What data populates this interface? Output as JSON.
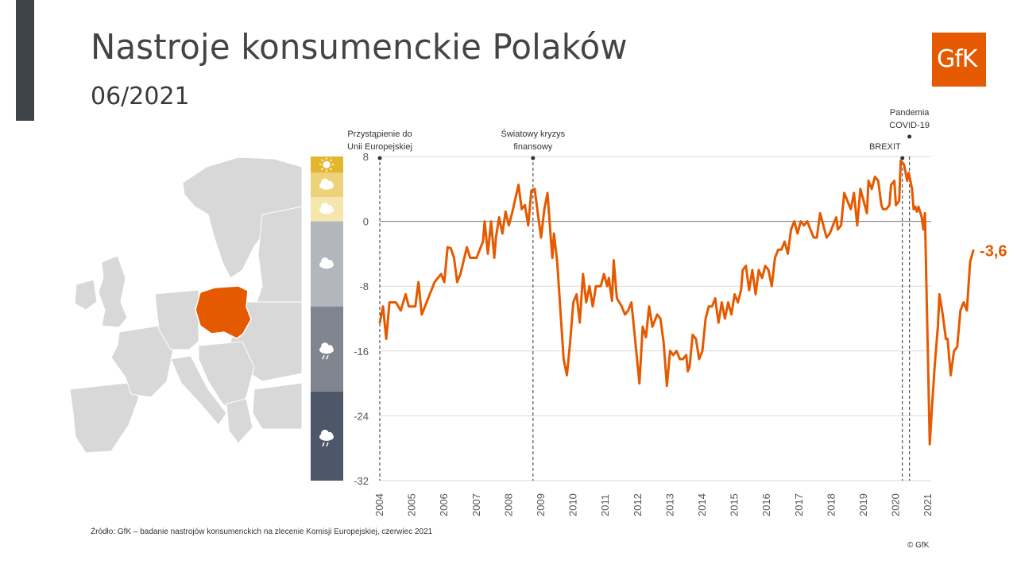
{
  "title": "Nastroje konsumenckie Polaków",
  "subtitle": "06/2021",
  "logo": {
    "text": "GfK",
    "color": "#e55a00"
  },
  "source": "Źródło: GfK – badanie nastrojów konsumenckich na zlecenie Komisji Europejskiej, czerwiec 2021",
  "copyright": "© GfK",
  "colors": {
    "line": "#e55a00",
    "poland": "#e55a00",
    "map": "#d8d8d8",
    "grid": "#d9d9d9",
    "zero": "#8c8c8c"
  },
  "weather_scale": [
    {
      "icon": "sun-icon",
      "color": "#e3b72d",
      "from": 8,
      "to": 6
    },
    {
      "icon": "sun-cloud-icon",
      "color": "#edd279",
      "from": 6,
      "to": 3
    },
    {
      "icon": "cloud-light-icon",
      "color": "#f5e6ad",
      "from": 3,
      "to": 0
    },
    {
      "icon": "cloud-icon",
      "color": "#b3b6bd",
      "from": 0,
      "to": -10.5
    },
    {
      "icon": "rain-cloud-icon",
      "color": "#80858f",
      "from": -10.5,
      "to": -21
    },
    {
      "icon": "storm-cloud-icon",
      "color": "#4d576a",
      "from": -21,
      "to": -32
    }
  ],
  "chart_data": {
    "type": "line",
    "title": "",
    "xlabel": "",
    "ylabel": "",
    "ylim": [
      -32,
      8
    ],
    "yticks": [
      8,
      0,
      -8,
      -16,
      -24,
      -32
    ],
    "xtick_labels": [
      "2004",
      "2005",
      "2006",
      "2007",
      "2008",
      "2009",
      "2010",
      "2011",
      "2012",
      "2013",
      "2014",
      "2015",
      "2016",
      "2017",
      "2018",
      "2019",
      "2020",
      "2021"
    ],
    "grid": true,
    "last_value_label": "-3,6",
    "annotations": [
      {
        "label_lines": [
          "Przystąpienie do",
          "Unii Europejskiej"
        ],
        "x": 2004.0
      },
      {
        "label_lines": [
          "Światowy kryzys",
          "finansowy"
        ],
        "x": 2008.75
      },
      {
        "label_lines": [
          "BREXIT"
        ],
        "x": 2020.2
      },
      {
        "label_lines": [
          "Pandemia",
          "COVID-19"
        ],
        "x": 2020.42
      }
    ],
    "series": [
      {
        "points": [
          [
            2004.0,
            -12.5
          ],
          [
            2004.1,
            -10.5
          ],
          [
            2004.2,
            -14.5
          ],
          [
            2004.3,
            -10
          ],
          [
            2004.5,
            -10
          ],
          [
            2004.65,
            -11
          ],
          [
            2004.8,
            -9
          ],
          [
            2004.9,
            -10.5
          ],
          [
            2005.1,
            -10.5
          ],
          [
            2005.2,
            -7.5
          ],
          [
            2005.3,
            -11.5
          ],
          [
            2005.5,
            -9.5
          ],
          [
            2005.7,
            -7.5
          ],
          [
            2005.9,
            -6.5
          ],
          [
            2006.0,
            -7.5
          ],
          [
            2006.1,
            -3.2
          ],
          [
            2006.2,
            -3.3
          ],
          [
            2006.3,
            -4.5
          ],
          [
            2006.4,
            -7.5
          ],
          [
            2006.5,
            -6.5
          ],
          [
            2006.7,
            -3.2
          ],
          [
            2006.8,
            -4.5
          ],
          [
            2007.0,
            -4.5
          ],
          [
            2007.2,
            -2.5
          ],
          [
            2007.25,
            0
          ],
          [
            2007.35,
            -4
          ],
          [
            2007.45,
            0
          ],
          [
            2007.55,
            -4.5
          ],
          [
            2007.6,
            -2
          ],
          [
            2007.7,
            0.5
          ],
          [
            2007.8,
            -1.5
          ],
          [
            2007.9,
            1.2
          ],
          [
            2008.0,
            -0.5
          ],
          [
            2008.1,
            1
          ],
          [
            2008.3,
            4.5
          ],
          [
            2008.4,
            1.5
          ],
          [
            2008.5,
            2
          ],
          [
            2008.6,
            -0.5
          ],
          [
            2008.7,
            3.8
          ],
          [
            2008.8,
            4
          ],
          [
            2008.9,
            1
          ],
          [
            2009.0,
            -2
          ],
          [
            2009.1,
            1.5
          ],
          [
            2009.2,
            3.5
          ],
          [
            2009.3,
            -2
          ],
          [
            2009.35,
            -4.5
          ],
          [
            2009.4,
            -1.5
          ],
          [
            2009.5,
            -5
          ],
          [
            2009.7,
            -17
          ],
          [
            2009.8,
            -19
          ],
          [
            2009.9,
            -15
          ],
          [
            2010.0,
            -10
          ],
          [
            2010.1,
            -9
          ],
          [
            2010.2,
            -12.5
          ],
          [
            2010.3,
            -6.5
          ],
          [
            2010.4,
            -10
          ],
          [
            2010.5,
            -8
          ],
          [
            2010.6,
            -10.5
          ],
          [
            2010.7,
            -8
          ],
          [
            2010.85,
            -8
          ],
          [
            2010.95,
            -6.5
          ],
          [
            2011.05,
            -8
          ],
          [
            2011.1,
            -7
          ],
          [
            2011.2,
            -9.8
          ],
          [
            2011.25,
            -4.8
          ],
          [
            2011.35,
            -9.5
          ],
          [
            2011.5,
            -10.5
          ],
          [
            2011.6,
            -11.5
          ],
          [
            2011.7,
            -11
          ],
          [
            2011.8,
            -10
          ],
          [
            2011.95,
            -16
          ],
          [
            2012.05,
            -20
          ],
          [
            2012.15,
            -13
          ],
          [
            2012.25,
            -14.3
          ],
          [
            2012.35,
            -10.5
          ],
          [
            2012.45,
            -13
          ],
          [
            2012.6,
            -11.5
          ],
          [
            2012.7,
            -12
          ],
          [
            2012.8,
            -15
          ],
          [
            2012.9,
            -20.3
          ],
          [
            2013.0,
            -16
          ],
          [
            2013.1,
            -16.5
          ],
          [
            2013.2,
            -16
          ],
          [
            2013.3,
            -17
          ],
          [
            2013.4,
            -17
          ],
          [
            2013.5,
            -16.5
          ],
          [
            2013.55,
            -18.5
          ],
          [
            2013.6,
            -18
          ],
          [
            2013.7,
            -14
          ],
          [
            2013.8,
            -14.5
          ],
          [
            2013.9,
            -17
          ],
          [
            2014.0,
            -16
          ],
          [
            2014.1,
            -12
          ],
          [
            2014.2,
            -10.5
          ],
          [
            2014.3,
            -10.5
          ],
          [
            2014.4,
            -9.5
          ],
          [
            2014.5,
            -12.5
          ],
          [
            2014.6,
            -10
          ],
          [
            2014.7,
            -12
          ],
          [
            2014.8,
            -10
          ],
          [
            2014.9,
            -11.5
          ],
          [
            2015.0,
            -9
          ],
          [
            2015.1,
            -10
          ],
          [
            2015.2,
            -8.5
          ],
          [
            2015.25,
            -6
          ],
          [
            2015.35,
            -5.5
          ],
          [
            2015.45,
            -8.5
          ],
          [
            2015.55,
            -6
          ],
          [
            2015.65,
            -9
          ],
          [
            2015.75,
            -6
          ],
          [
            2015.85,
            -7
          ],
          [
            2015.95,
            -5.5
          ],
          [
            2016.05,
            -6
          ],
          [
            2016.15,
            -8
          ],
          [
            2016.25,
            -4.5
          ],
          [
            2016.35,
            -3.5
          ],
          [
            2016.45,
            -3.5
          ],
          [
            2016.55,
            -2.5
          ],
          [
            2016.65,
            -4
          ],
          [
            2016.75,
            -1
          ],
          [
            2016.85,
            0
          ],
          [
            2016.95,
            -1.5
          ],
          [
            2017.05,
            0
          ],
          [
            2017.15,
            -0.5
          ],
          [
            2017.25,
            0
          ],
          [
            2017.35,
            -1
          ],
          [
            2017.45,
            -2
          ],
          [
            2017.55,
            -2
          ],
          [
            2017.65,
            1
          ],
          [
            2017.75,
            -0.5
          ],
          [
            2017.85,
            -2
          ],
          [
            2017.95,
            -1.5
          ],
          [
            2018.05,
            -0.5
          ],
          [
            2018.15,
            0.5
          ],
          [
            2018.2,
            -1
          ],
          [
            2018.3,
            -0.5
          ],
          [
            2018.4,
            3.5
          ],
          [
            2018.5,
            2.5
          ],
          [
            2018.6,
            1.5
          ],
          [
            2018.7,
            3.5
          ],
          [
            2018.8,
            -0.5
          ],
          [
            2018.9,
            4
          ],
          [
            2019.0,
            2.5
          ],
          [
            2019.1,
            1
          ],
          [
            2019.15,
            5
          ],
          [
            2019.25,
            4
          ],
          [
            2019.35,
            5.5
          ],
          [
            2019.45,
            5
          ],
          [
            2019.55,
            2
          ],
          [
            2019.6,
            1.5
          ],
          [
            2019.7,
            1.5
          ],
          [
            2019.8,
            2
          ],
          [
            2019.85,
            4.5
          ],
          [
            2019.95,
            5
          ],
          [
            2020.0,
            2
          ],
          [
            2020.1,
            2.5
          ],
          [
            2020.15,
            7.5
          ],
          [
            2020.25,
            7
          ],
          [
            2020.35,
            5
          ],
          [
            2020.4,
            6
          ],
          [
            2020.5,
            4
          ],
          [
            2020.55,
            1.5
          ],
          [
            2020.6,
            1.8
          ],
          [
            2020.65,
            1.2
          ],
          [
            2020.7,
            1.8
          ],
          [
            2020.8,
            0.5
          ],
          [
            2020.85,
            -1
          ],
          [
            2020.9,
            1
          ],
          [
            2021.05,
            -27.5
          ],
          [
            2021.1,
            -24
          ],
          [
            2021.2,
            -18
          ],
          [
            2021.3,
            -13
          ],
          [
            2021.35,
            -9
          ],
          [
            2021.45,
            -11.5
          ],
          [
            2021.55,
            -14.5
          ],
          [
            2021.6,
            -14.5
          ],
          [
            2021.7,
            -19
          ],
          [
            2021.8,
            -16
          ],
          [
            2021.9,
            -15.5
          ],
          [
            2022.0,
            -11
          ],
          [
            2022.1,
            -10
          ],
          [
            2022.2,
            -11
          ],
          [
            2022.3,
            -5
          ],
          [
            2022.4,
            -3.6
          ]
        ]
      }
    ]
  }
}
